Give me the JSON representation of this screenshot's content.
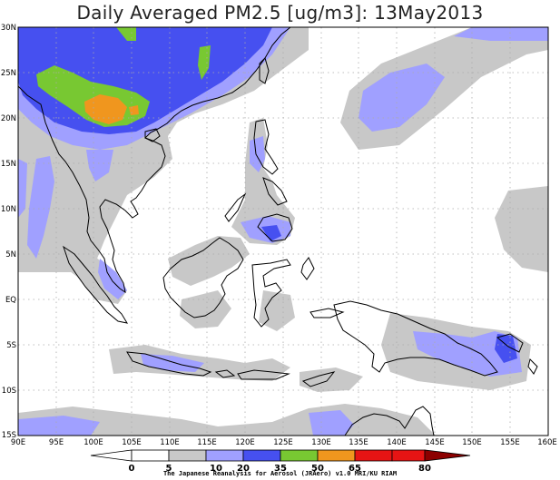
{
  "title": "Daily Averaged PM2.5 [ug/m3]: 13May2013",
  "credit": "The Japanese Reanalysis for Aerosol (JRAero) v1.0 MRI/KU RIAM",
  "axes": {
    "lon_labels": [
      "90E",
      "95E",
      "100E",
      "105E",
      "110E",
      "115E",
      "120E",
      "125E",
      "130E",
      "135E",
      "140E",
      "145E",
      "150E",
      "155E",
      "160E"
    ],
    "lat_labels": [
      "30N",
      "25N",
      "20N",
      "15N",
      "10N",
      "5N",
      "EQ",
      "5S",
      "10S",
      "15S"
    ]
  },
  "colorbar": {
    "labels": [
      "0",
      "5",
      "10",
      "20",
      "35",
      "50",
      "65",
      "80"
    ],
    "colors": [
      "#ffffff",
      "#ffffff",
      "#c8c8c8",
      "#a0a0ff",
      "#4650f0",
      "#78c832",
      "#f0961e",
      "#e61414",
      "#8c0000"
    ]
  },
  "colors": {
    "ocean": "#ffffff",
    "gray": "#c8c8c8",
    "lavender": "#a0a0ff",
    "blue": "#4650f0",
    "green": "#78c832",
    "orange": "#f0961e",
    "coast": "#000000"
  }
}
